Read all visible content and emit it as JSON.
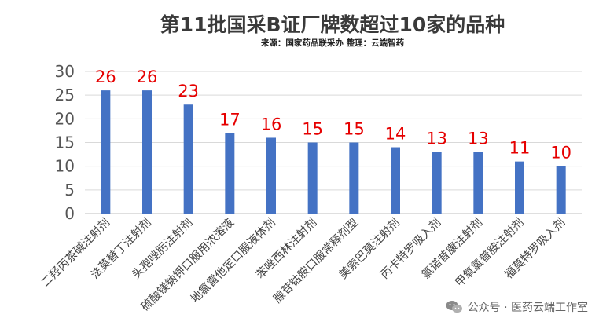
{
  "chart_data": {
    "type": "bar",
    "title": "第11批国采B证厂牌数超过10家的品种",
    "subtitle": "来源：国家药品联采办 整理：云端智药",
    "categories": [
      "二羟丙茶碱注射剂",
      "法莫替丁注射剂",
      "头孢唑肟注射剂",
      "硫酸镁钠钾口服用浓溶液",
      "地氯雷他定口服液体剂",
      "苯唑西林注射剂",
      "腺苷钴胺口服常释剂型",
      "美索巴莫注射剂",
      "丙卡特罗吸入剂",
      "氯诺昔康注射剂",
      "甲氧氯普胺注射剂",
      "福莫特罗吸入剂"
    ],
    "values": [
      26,
      26,
      23,
      17,
      16,
      15,
      15,
      14,
      13,
      13,
      11,
      10
    ],
    "ylim": [
      0,
      30
    ],
    "yticks": [
      0,
      5,
      10,
      15,
      20,
      25,
      30
    ],
    "grid": true,
    "bar_color": "#4472c4",
    "label_color": "#e60000"
  },
  "watermark": {
    "icon": "wechat-icon",
    "text": "公众号 · 医药云端工作室"
  }
}
